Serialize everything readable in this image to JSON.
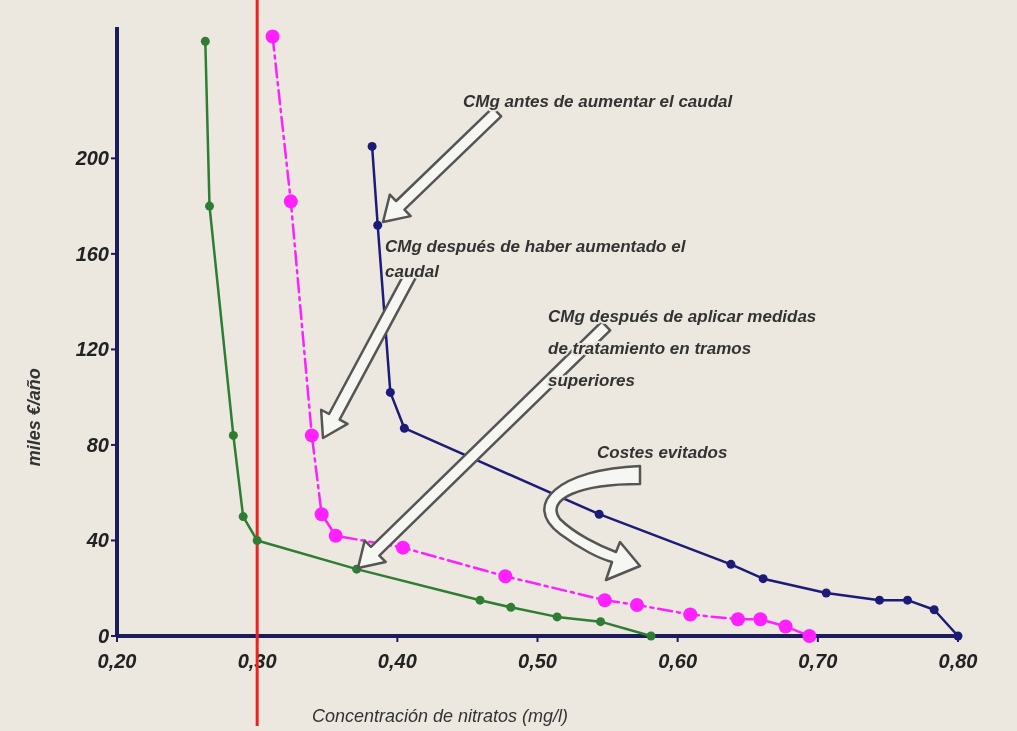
{
  "chart_data": {
    "type": "line",
    "xlabel": "Concentración de nitratos (mg/l)",
    "ylabel": "miles €/año",
    "xlim": [
      0.2,
      0.8
    ],
    "xticks": [
      {
        "value": 0.2,
        "label": "0,20"
      },
      {
        "value": 0.3,
        "label": "0,30"
      },
      {
        "value": 0.4,
        "label": "0,40"
      },
      {
        "value": 0.5,
        "label": "0,50"
      },
      {
        "value": 0.6,
        "label": "0,60"
      },
      {
        "value": 0.7,
        "label": "0,70"
      },
      {
        "value": 0.8,
        "label": "0,80"
      }
    ],
    "ylim": [
      0,
      255
    ],
    "yticks": [
      0,
      40,
      80,
      120,
      160,
      200
    ],
    "grid": false,
    "marker": "circle",
    "series": [
      {
        "color": "#1c1c78",
        "line_style": "solid",
        "x": [
          0.382,
          0.386,
          0.395,
          0.405,
          0.544,
          0.638,
          0.661,
          0.706,
          0.744,
          0.764,
          0.783,
          0.8
        ],
        "values": [
          205,
          172,
          102,
          87,
          51,
          30,
          24,
          18,
          15,
          15,
          11,
          0
        ]
      },
      {
        "color": "#ff20ff",
        "line_style": "dashed",
        "x": [
          0.311,
          0.324,
          0.339,
          0.346,
          0.356,
          0.404,
          0.477,
          0.548,
          0.571,
          0.609,
          0.643,
          0.659,
          0.677,
          0.694
        ],
        "values": [
          251,
          182,
          84,
          51,
          42,
          37,
          25,
          15,
          13,
          9,
          7,
          7,
          4,
          0
        ]
      },
      {
        "color": "#2e7d32",
        "line_style": "solid",
        "x": [
          0.263,
          0.266,
          0.283,
          0.29,
          0.3,
          0.371,
          0.459,
          0.481,
          0.514,
          0.545,
          0.581
        ],
        "values": [
          249,
          180,
          84,
          50,
          40,
          28,
          15,
          12,
          8,
          6,
          0
        ]
      }
    ],
    "ref_lines": [
      {
        "axis": "x",
        "value": 0.3,
        "color": "#ee2222"
      }
    ],
    "annotations": [
      "CMg antes de aumentar el caudal",
      "CMg después de haber aumentado el caudal",
      "CMg después de aplicar medidas de tratamiento en tramos superiores",
      "Costes evitados"
    ]
  }
}
